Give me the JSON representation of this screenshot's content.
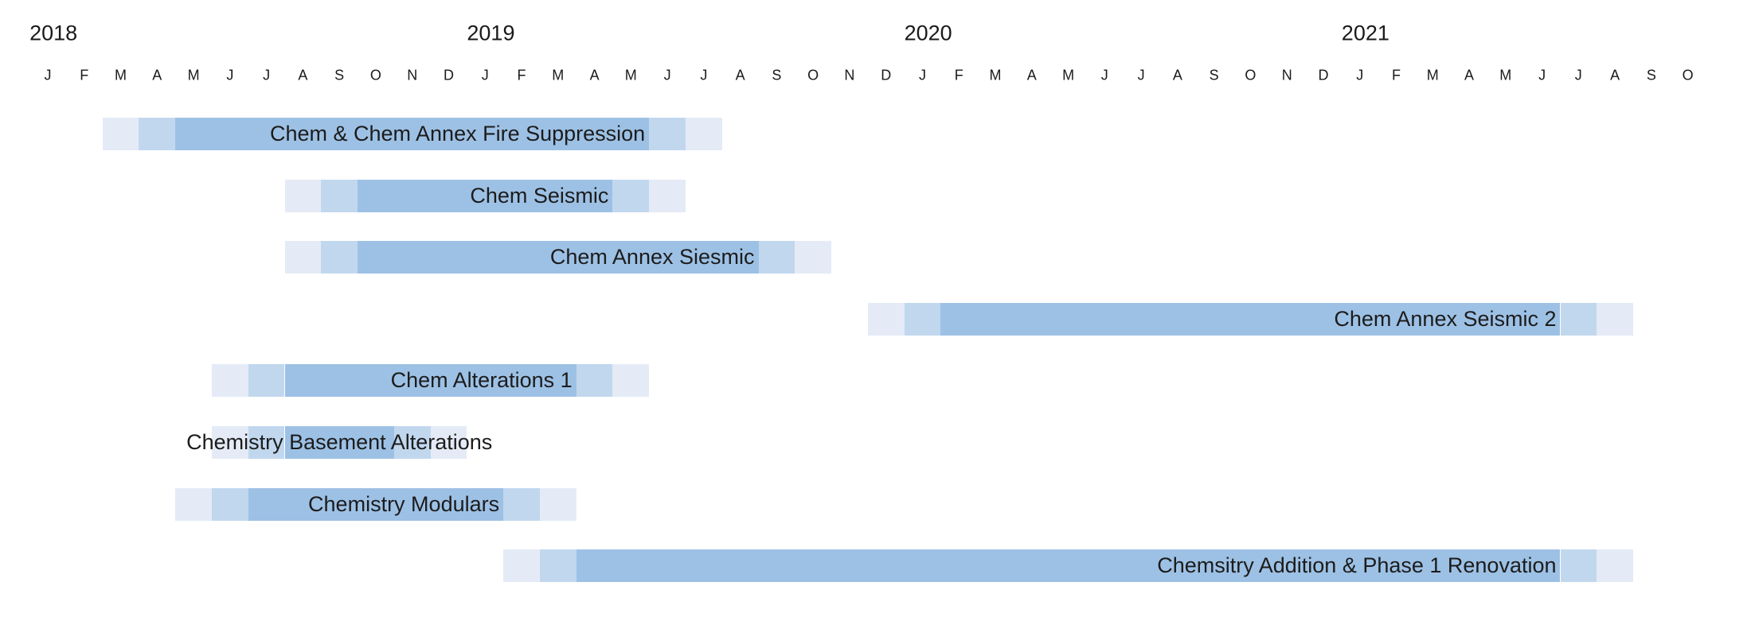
{
  "chart_data": {
    "type": "bar",
    "subtype": "gantt-timeline",
    "title": "",
    "legend_position": "none",
    "grid": false,
    "x_axis": {
      "unit": "month",
      "range_start": "Jan 2018",
      "range_end": "Oct 2021",
      "years": [
        {
          "label": "2018",
          "start_month_index": 0
        },
        {
          "label": "2019",
          "start_month_index": 12
        },
        {
          "label": "2020",
          "start_month_index": 24
        },
        {
          "label": "2021",
          "start_month_index": 36
        }
      ],
      "month_labels": [
        "J",
        "F",
        "M",
        "A",
        "M",
        "J",
        "J",
        "A",
        "S",
        "O",
        "N",
        "D",
        "J",
        "F",
        "M",
        "A",
        "M",
        "J",
        "J",
        "A",
        "S",
        "O",
        "N",
        "D",
        "J",
        "F",
        "M",
        "A",
        "M",
        "J",
        "J",
        "A",
        "S",
        "O",
        "N",
        "D",
        "J",
        "F",
        "M",
        "A",
        "M",
        "J",
        "J",
        "A",
        "S",
        "O"
      ]
    },
    "colors": {
      "phase_light": "#e4ebf6",
      "phase_medium": "#c1d7ee",
      "phase_main": "#9dc1e5",
      "label_text": "#1c1c1c",
      "axis_text": "#1a1a1a",
      "background": "#ffffff"
    },
    "phase_pattern": {
      "description": "each bar: first month light, second month medium, middle months main, second-to-last month medium, last month light"
    },
    "tasks": [
      {
        "name": "Chem & Chem Annex Fire Suppression",
        "start": "Mar 2018",
        "end": "Jul 2019",
        "start_index": 2,
        "end_index": 18,
        "label_placement": "inside-end"
      },
      {
        "name": "Chem Seismic",
        "start": "Aug 2018",
        "end": "Jun 2019",
        "start_index": 7,
        "end_index": 17,
        "label_placement": "inside-end"
      },
      {
        "name": "Chem Annex Siesmic",
        "start": "Aug 2018",
        "end": "Oct 2019",
        "start_index": 7,
        "end_index": 21,
        "label_placement": "inside-end"
      },
      {
        "name": "Chem Annex Seismic 2",
        "start": "Dec 2019",
        "end": "Aug 2021",
        "start_index": 23,
        "end_index": 43,
        "label_placement": "inside-end"
      },
      {
        "name": "Chem Alterations 1",
        "start": "Jun 2018",
        "end": "May 2019",
        "start_index": 5,
        "end_index": 16,
        "label_placement": "inside-end"
      },
      {
        "name": "Chemistry Basement Alterations",
        "start": "Jun 2018",
        "end": "Dec 2018",
        "start_index": 5,
        "end_index": 11,
        "label_placement": "center"
      },
      {
        "name": "Chemistry Modulars",
        "start": "May 2018",
        "end": "Mar 2019",
        "start_index": 4,
        "end_index": 14,
        "label_placement": "inside-end"
      },
      {
        "name": "Chemsitry Addition & Phase 1 Renovation",
        "start": "Feb 2019",
        "end": "Aug 2021",
        "start_index": 13,
        "end_index": 43,
        "label_placement": "inside-end"
      }
    ]
  }
}
